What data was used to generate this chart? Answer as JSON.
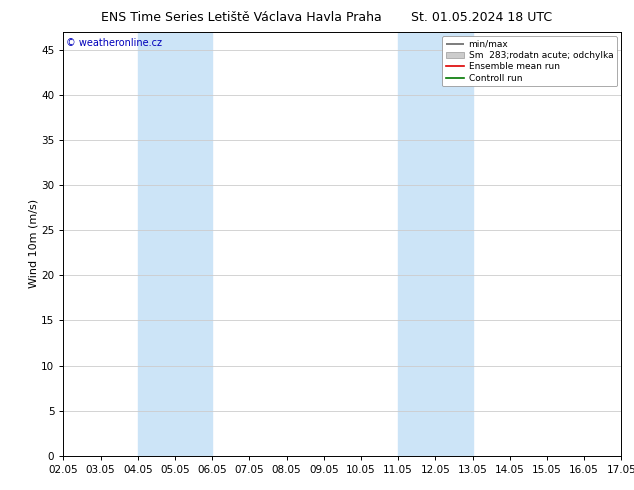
{
  "title": "ENS Time Series Letiště Václava Havla Praha",
  "title_right": "St. 01.05.2024 18 UTC",
  "ylabel": "Wind 10m (m/s)",
  "watermark": "© weatheronline.cz",
  "watermark_color": "#0000bb",
  "background_color": "#ffffff",
  "plot_bg_color": "#ffffff",
  "ylim": [
    0,
    47
  ],
  "yticks": [
    0,
    5,
    10,
    15,
    20,
    25,
    30,
    35,
    40,
    45
  ],
  "xlim": [
    0,
    15
  ],
  "xtick_labels": [
    "02.05",
    "03.05",
    "04.05",
    "05.05",
    "06.05",
    "07.05",
    "08.05",
    "09.05",
    "10.05",
    "11.05",
    "12.05",
    "13.05",
    "14.05",
    "15.05",
    "16.05",
    "17.05"
  ],
  "shaded_bands": [
    {
      "xstart": 2,
      "xend": 4,
      "color": "#cce4f7"
    },
    {
      "xstart": 9,
      "xend": 11,
      "color": "#cce4f7"
    }
  ],
  "legend_entries": [
    {
      "label": "min/max",
      "color": "#666666",
      "linestyle": "-",
      "linewidth": 1.2
    },
    {
      "label": "Sm  283;rodatn acute; odchylka",
      "color": "#cccccc",
      "linestyle": "-",
      "linewidth": 5
    },
    {
      "label": "Ensemble mean run",
      "color": "#dd0000",
      "linestyle": "-",
      "linewidth": 1.2
    },
    {
      "label": "Controll run",
      "color": "#007700",
      "linestyle": "-",
      "linewidth": 1.2
    }
  ],
  "grid_color": "#cccccc",
  "border_color": "#000000",
  "title_fontsize": 9,
  "axis_fontsize": 8,
  "tick_fontsize": 7.5,
  "legend_fontsize": 6.5,
  "watermark_fontsize": 7
}
